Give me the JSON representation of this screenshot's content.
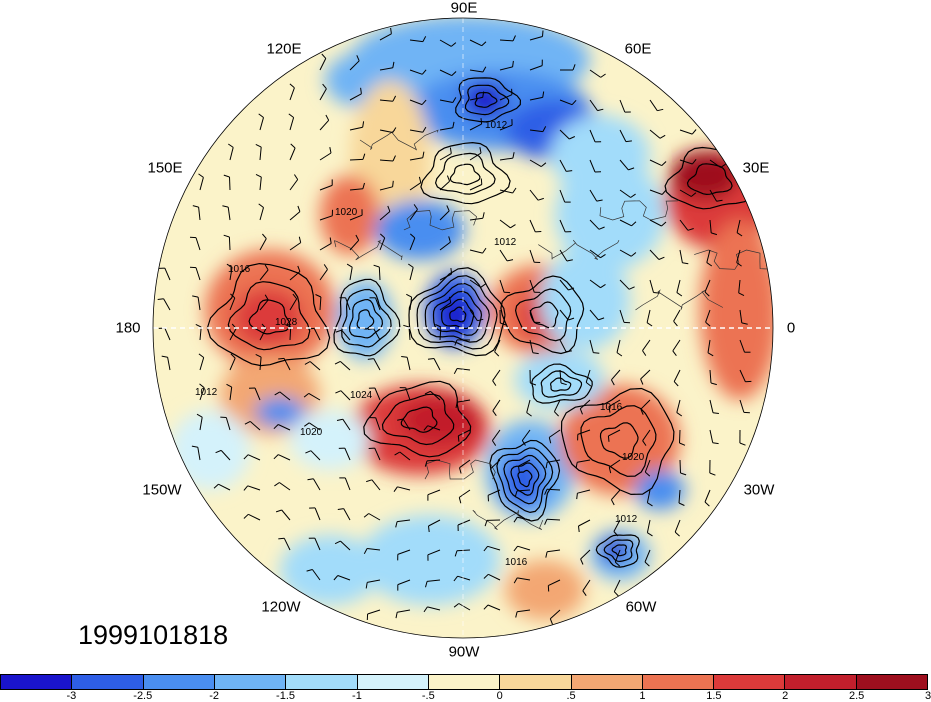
{
  "map": {
    "projection": "north polar stereographic",
    "variable_shading": "anomaly",
    "contour_variable": "sea level pressure",
    "barbs": "wind barbs",
    "longitude_labels": {
      "lon_90E": "90E",
      "lon_60E": "60E",
      "lon_30E": "30E",
      "lon_0": "0",
      "lon_30W": "30W",
      "lon_60W": "60W",
      "lon_90W": "90W",
      "lon_120W": "120W",
      "lon_150W": "150W",
      "lon_180": "180",
      "lon_150E": "150E",
      "lon_120E": "120E"
    },
    "contour_labels": [
      "1020",
      "1012",
      "1016",
      "1028",
      "1024",
      "1012",
      "1016",
      "1020",
      "1012",
      "1016",
      "1012",
      "1020"
    ],
    "timestamp": "1999101818"
  },
  "colorbar": {
    "colors": [
      "#1a14cc",
      "#2e5ee6",
      "#4a8ef0",
      "#6fb4f5",
      "#a2dcfa",
      "#d4f2fb",
      "#fbf3c9",
      "#f8d79a",
      "#f3a773",
      "#ec7352",
      "#dc3a3a",
      "#c21f2c",
      "#9e0f1e"
    ],
    "tick_labels": [
      "-3",
      "-2.5",
      "-2",
      "-1.5",
      "-1",
      "-.5",
      "0",
      ".5",
      "1",
      "1.5",
      "2",
      "2.5",
      "3"
    ]
  }
}
